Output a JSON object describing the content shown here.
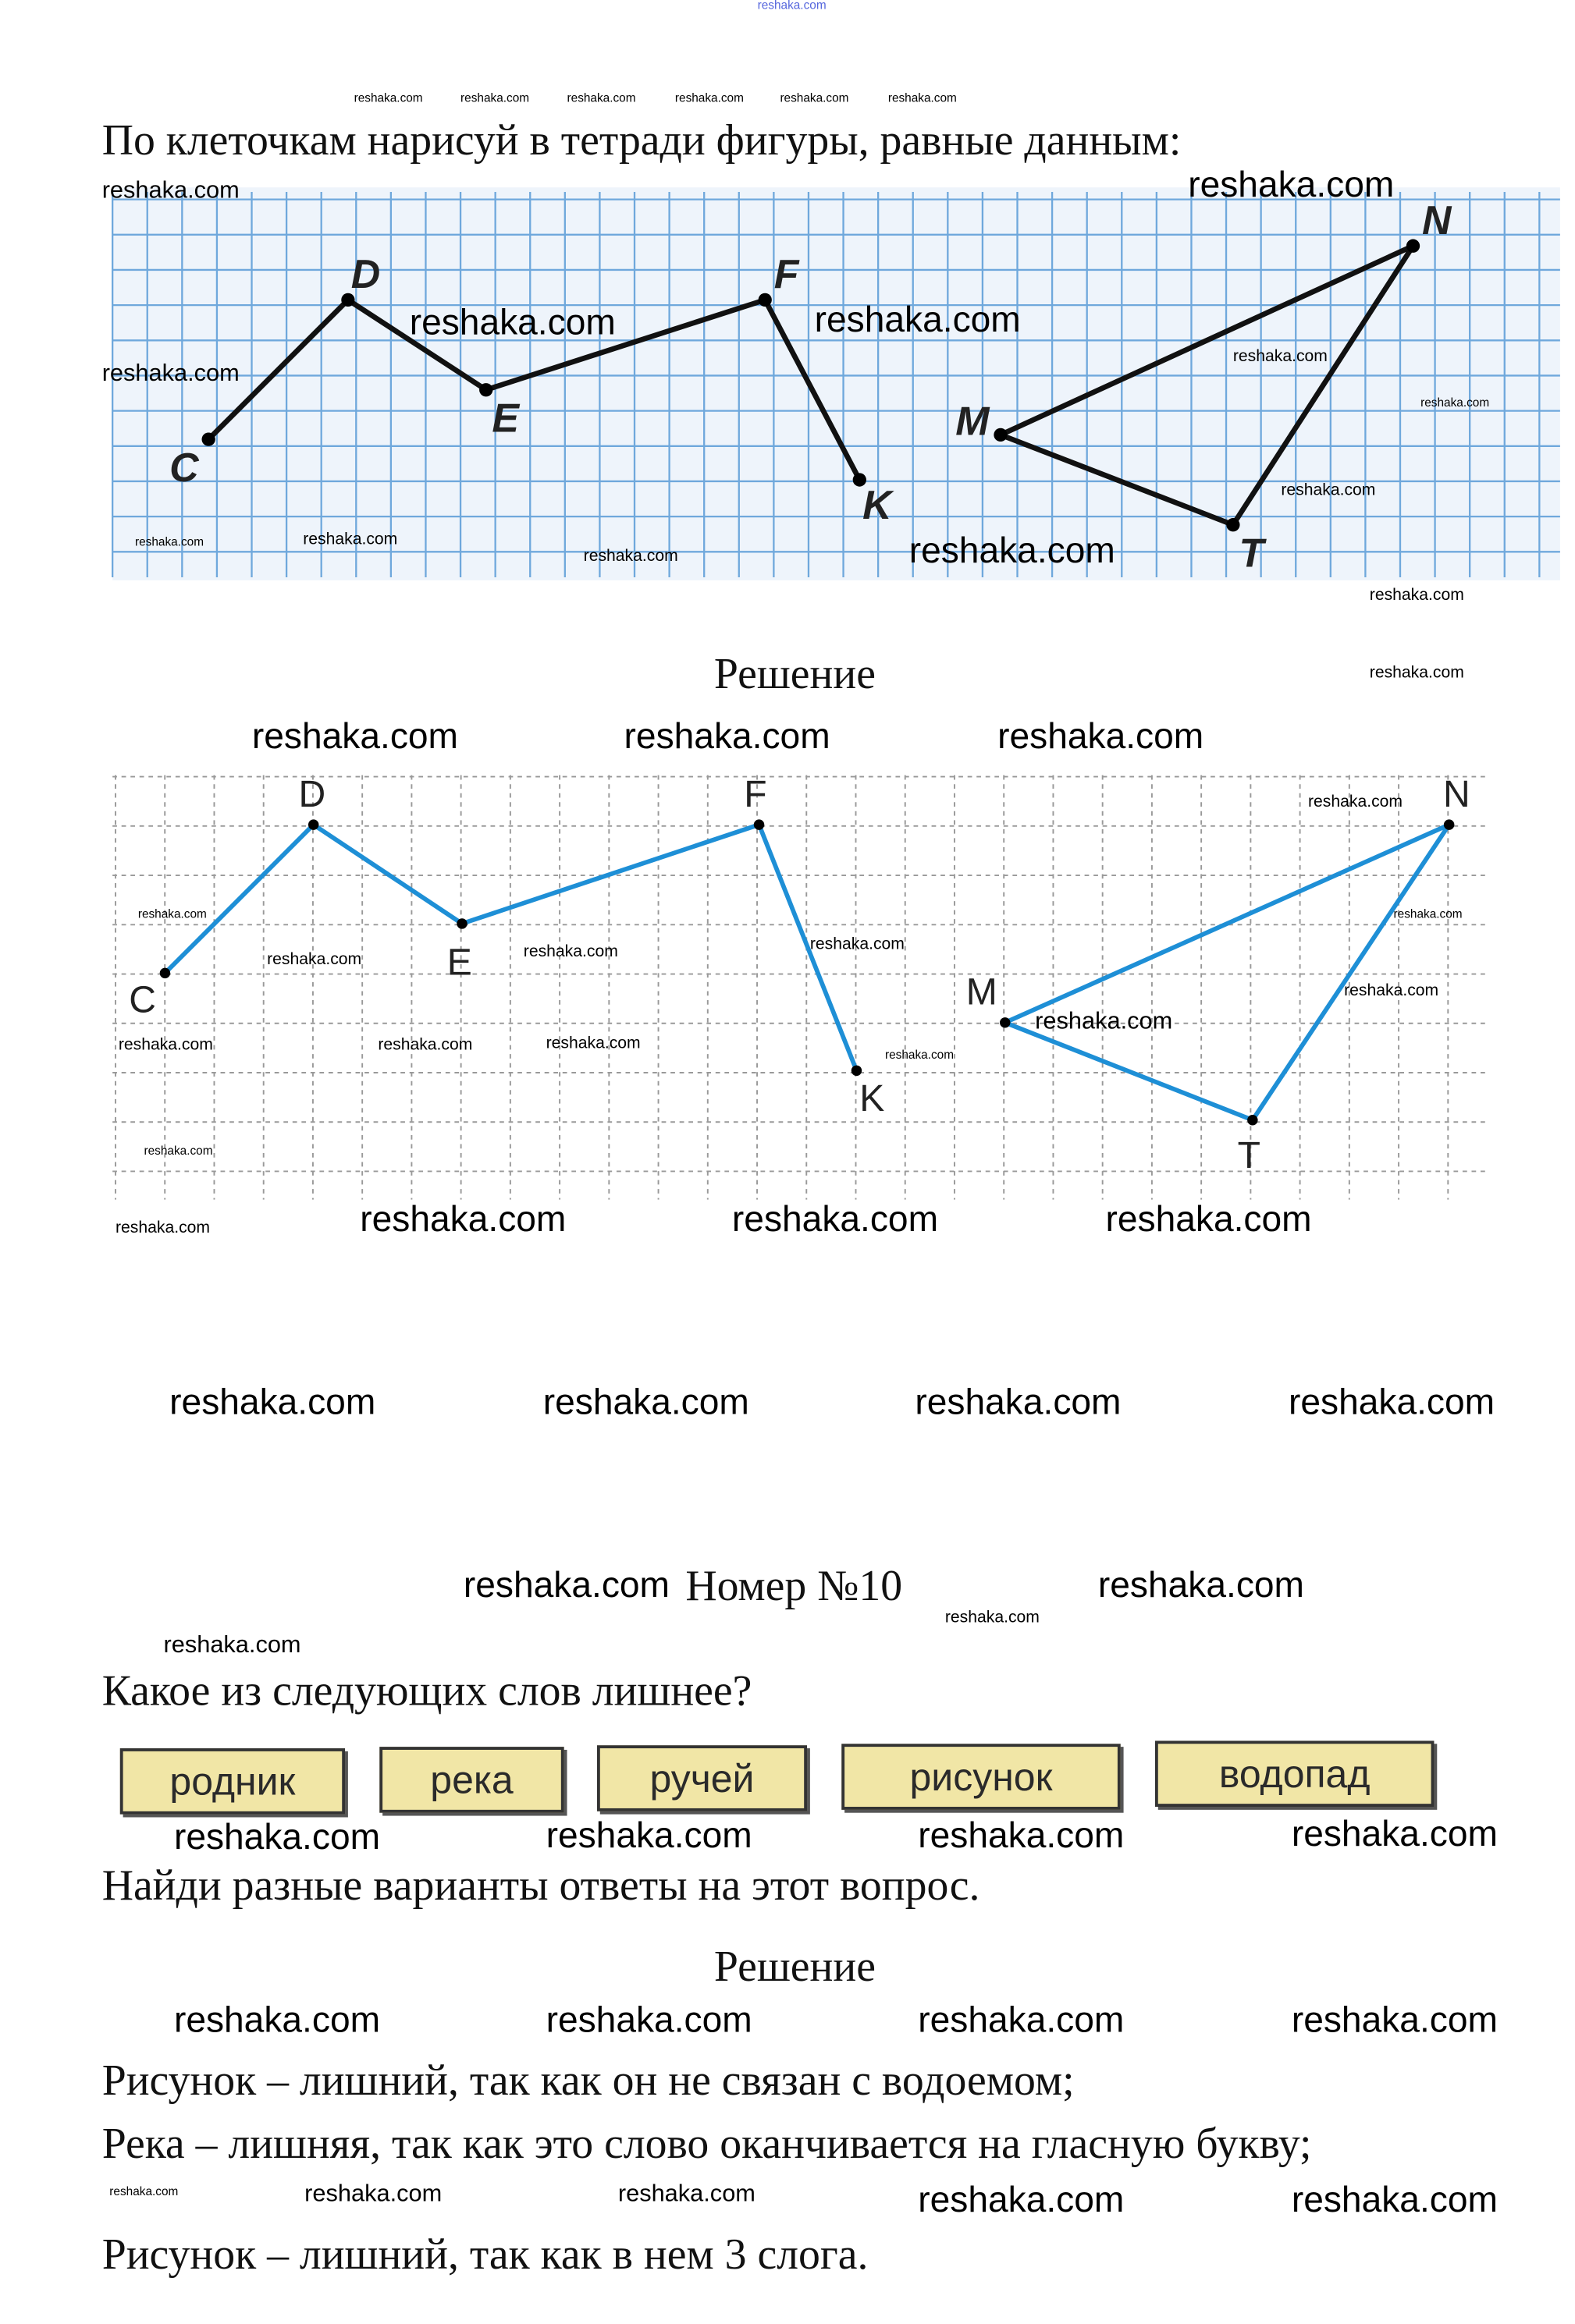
{
  "watermark": "reshaka.com",
  "task1": {
    "title": "По клеточкам нарисуй в тетради фигуры, равные данным:",
    "points": [
      "C",
      "D",
      "E",
      "F",
      "K",
      "M",
      "N",
      "T"
    ],
    "grid_color": "#6fa8dc",
    "line_color": "#111111"
  },
  "solution1": {
    "heading": "Решение",
    "points": [
      "C",
      "D",
      "E",
      "F",
      "K",
      "M",
      "N",
      "T"
    ],
    "line_color": "#1e8fd6",
    "grid_color": "#999999"
  },
  "task2": {
    "number": "Номер №10",
    "question": "Какое из следующих слов лишнее?",
    "words": [
      "родник",
      "река",
      "ручей",
      "рисунок",
      "водопад"
    ],
    "word_bg": "#f1e6a6",
    "instruction": "Найди разные варианты ответы на этот вопрос."
  },
  "solution2": {
    "heading": "Решение",
    "answers": [
      "Рисунок – лишний, так как он не связан с водоемом;",
      "Река – лишняя, так как это слово оканчивается на гласную букву;",
      "Рисунок – лишний, так как в нем 3 слога."
    ]
  }
}
